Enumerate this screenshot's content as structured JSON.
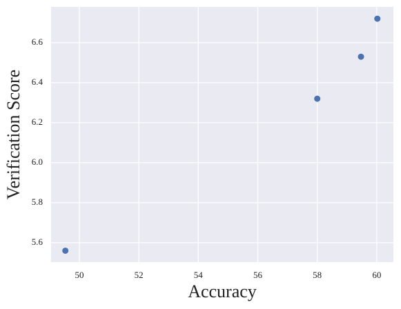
{
  "chart_data": {
    "type": "scatter",
    "x_label": "Accuracy",
    "y_label": "Verification Score",
    "series": [
      {
        "color": "#4c72b0",
        "x": [
          49.53,
          58.0,
          59.47,
          60.02
        ],
        "values": [
          5.56,
          6.32,
          6.53,
          6.72
        ]
      }
    ],
    "xlim": [
      49.05,
      60.56
    ],
    "ylim": [
      5.503,
      6.779
    ],
    "xticks": [
      50,
      52,
      54,
      56,
      58,
      60
    ],
    "yticks": [
      {
        "value": 5.6,
        "label": "5.6"
      },
      {
        "value": 5.8,
        "label": "5.8"
      },
      {
        "value": 6.0,
        "label": "6.0"
      },
      {
        "value": 6.2,
        "label": "6.2"
      },
      {
        "value": 6.4,
        "label": "6.4"
      },
      {
        "value": 6.6,
        "label": "6.6"
      }
    ],
    "grid": true
  }
}
